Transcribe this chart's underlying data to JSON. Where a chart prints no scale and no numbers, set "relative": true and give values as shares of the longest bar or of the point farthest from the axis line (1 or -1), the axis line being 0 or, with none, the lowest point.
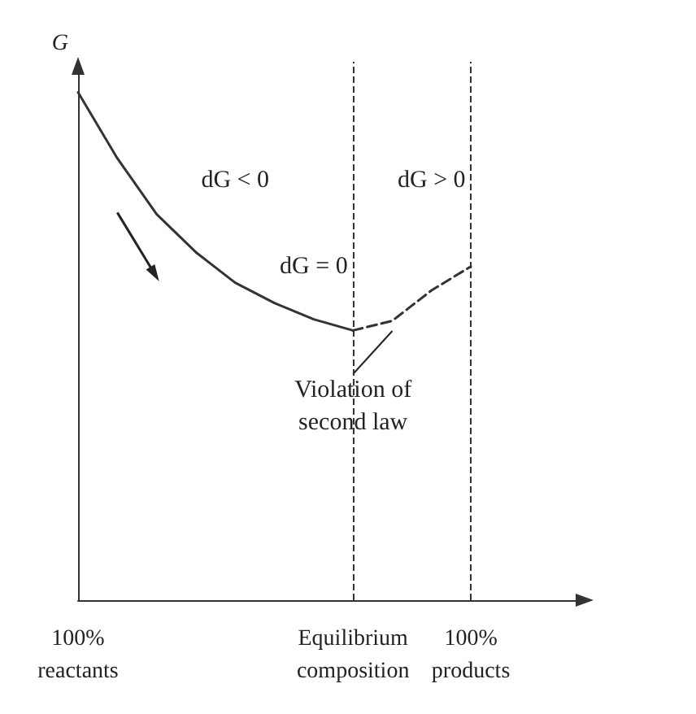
{
  "chart_data": {
    "type": "line",
    "ylabel": "G",
    "relative": true,
    "categories": [
      "100%\nreactants",
      null,
      null,
      null,
      null,
      null,
      null,
      "Equilibrium\ncomposition",
      null,
      null,
      "100%\nproducts",
      null,
      null,
      null
    ],
    "series": [
      {
        "color": "#333333",
        "line_style": "solid",
        "values": [
          1,
          0.87,
          0.76,
          0.685,
          0.625,
          0.585,
          0.553,
          0.531,
          null,
          null,
          null,
          null,
          null,
          null
        ]
      },
      {
        "color": "#333333",
        "line_style": "dashed",
        "values": [
          null,
          null,
          null,
          null,
          null,
          null,
          null,
          0.531,
          0.55,
          0.61,
          0.657,
          null,
          null,
          null
        ]
      }
    ],
    "ref_lines": [
      {
        "axis": "x",
        "value": "Equilibrium\ncomposition",
        "line_style": "dashed"
      },
      {
        "axis": "x",
        "value": "100%\nproducts",
        "line_style": "dashed"
      }
    ],
    "annotations": [
      "dG < 0",
      "dG = 0",
      "dG > 0",
      "Violation of\nsecond law"
    ],
    "grid": false,
    "marker": "none"
  }
}
